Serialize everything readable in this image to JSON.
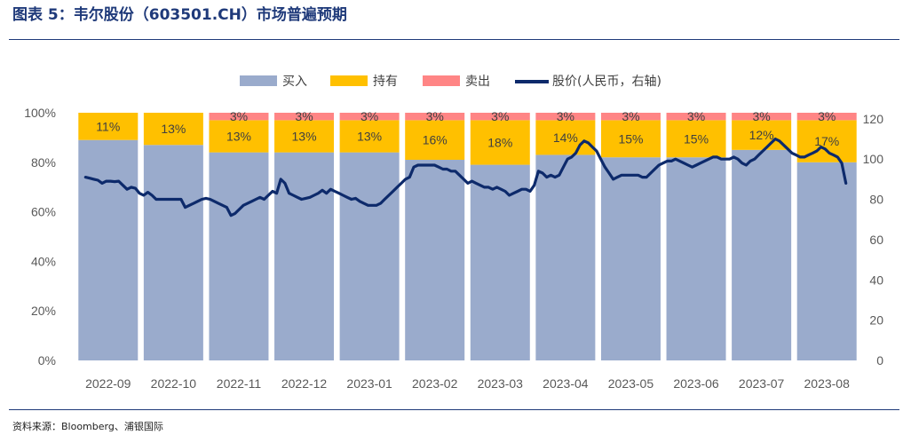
{
  "header": {
    "title": "图表 5：韦尔股份（603501.CH）市场普遍预期",
    "source": "资料来源：Bloomberg、浦银国际"
  },
  "chart_data": {
    "type": "bar",
    "stacked": true,
    "categories": [
      "2022-09",
      "2022-10",
      "2022-11",
      "2022-12",
      "2023-01",
      "2023-02",
      "2023-03",
      "2023-04",
      "2023-05",
      "2023-06",
      "2023-07",
      "2023-08"
    ],
    "series": [
      {
        "name": "买入",
        "color": "#9aabcc",
        "values": [
          89,
          87,
          84,
          84,
          84,
          81,
          79,
          83,
          82,
          82,
          85,
          80
        ]
      },
      {
        "name": "持有",
        "color": "#ffc000",
        "values": [
          11,
          13,
          13,
          13,
          13,
          16,
          18,
          14,
          15,
          15,
          12,
          17
        ]
      },
      {
        "name": "卖出",
        "color": "#ff8585",
        "values": [
          0,
          0,
          3,
          3,
          3,
          3,
          3,
          3,
          3,
          3,
          3,
          3
        ]
      }
    ],
    "data_labels": {
      "持有": [
        "11%",
        "13%",
        "13%",
        "13%",
        "13%",
        "16%",
        "18%",
        "14%",
        "15%",
        "15%",
        "12%",
        "17%"
      ],
      "卖出": [
        "",
        "",
        "3%",
        "3%",
        "3%",
        "3%",
        "3%",
        "3%",
        "3%",
        "3%",
        "3%",
        "3%"
      ]
    },
    "line_series": {
      "name": "股价(人民币，右轴)",
      "color": "#0d2a6b",
      "axis": "right",
      "values": [
        91,
        90.5,
        90,
        89.5,
        88,
        89,
        89,
        88.8,
        89,
        87,
        85,
        86,
        85.5,
        83,
        82,
        83.5,
        82,
        80,
        80,
        80,
        80,
        80,
        80,
        80,
        76,
        77,
        78,
        79,
        80,
        80.5,
        80,
        79,
        78,
        77,
        76,
        72,
        73,
        75,
        77,
        78,
        79,
        80,
        81,
        80,
        82,
        84,
        83,
        90,
        88,
        83,
        82,
        81,
        80,
        80.5,
        81,
        82,
        83,
        84.5,
        83,
        85,
        84,
        83,
        82,
        81,
        80,
        80.5,
        79,
        78,
        77,
        77,
        77,
        78,
        80,
        82,
        84,
        86,
        88,
        90,
        91,
        96,
        97,
        97,
        97,
        97,
        97,
        96,
        95,
        95,
        94,
        94,
        92,
        90,
        88,
        89,
        88,
        87,
        86,
        86,
        85,
        86,
        85,
        84,
        82,
        83,
        84,
        85,
        85,
        84,
        87,
        94,
        93,
        91,
        92,
        91,
        92,
        96,
        100,
        101,
        103,
        107,
        109,
        108,
        106,
        104,
        100,
        96,
        93,
        90,
        91,
        92,
        92,
        92,
        92,
        92,
        91,
        91,
        93,
        95,
        97,
        98,
        99,
        99,
        100,
        99,
        98,
        97,
        96,
        97,
        98,
        99,
        100,
        101,
        101,
        100,
        100,
        100,
        101,
        100,
        98,
        97,
        99,
        100,
        102,
        104,
        106,
        108,
        110,
        109,
        107,
        105,
        103,
        102,
        101,
        101,
        102,
        103,
        104,
        106,
        105,
        103,
        102,
        101,
        98,
        88
      ]
    },
    "yaxis_left": {
      "ticks": [
        "0%",
        "20%",
        "40%",
        "60%",
        "80%",
        "100%"
      ],
      "range": [
        0,
        100
      ]
    },
    "yaxis_right": {
      "ticks": [
        "0",
        "20",
        "40",
        "60",
        "80",
        "100",
        "120"
      ],
      "range": [
        0,
        123
      ]
    },
    "legend": {
      "position": "top",
      "items": [
        "买入",
        "持有",
        "卖出",
        "股价(人民币，右轴)"
      ]
    },
    "grid": false
  }
}
